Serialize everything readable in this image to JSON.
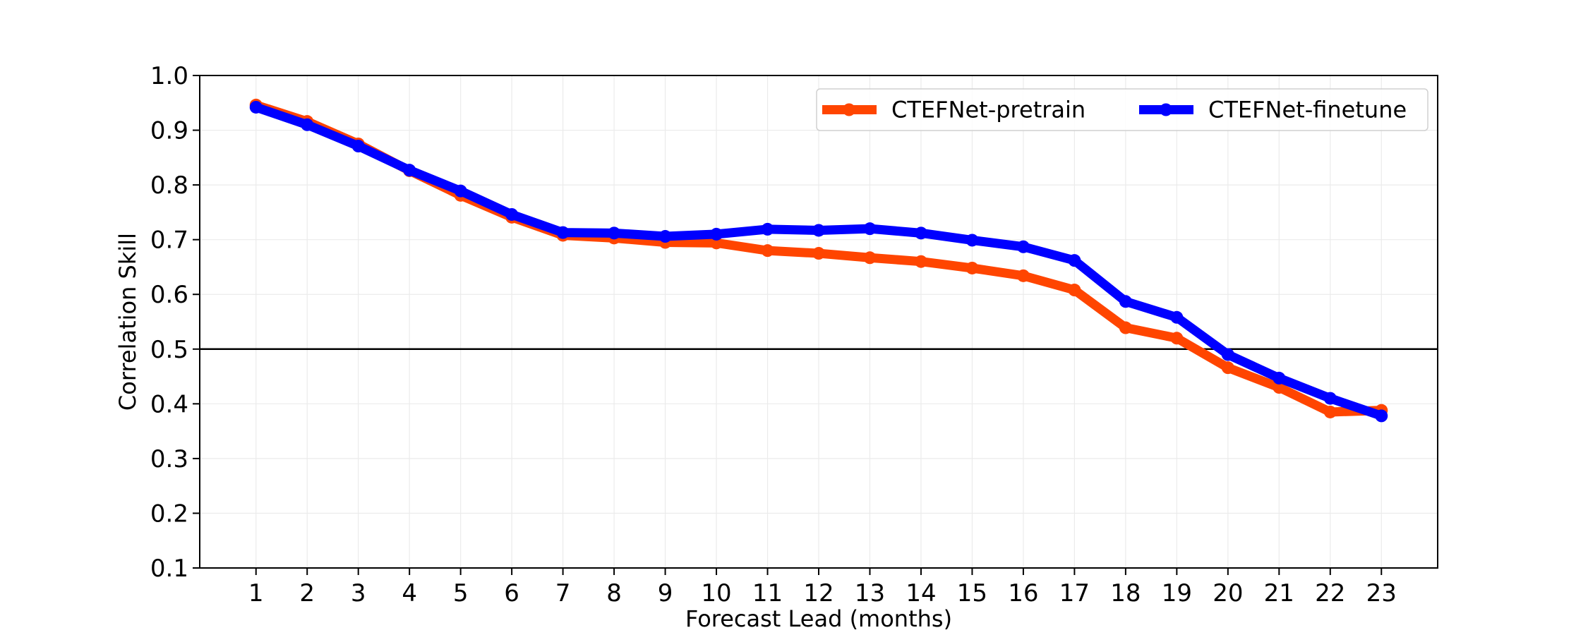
{
  "chart_data": {
    "type": "line",
    "title": "",
    "xlabel": "Forecast Lead (months)",
    "ylabel": "Correlation Skill",
    "categories": [
      1,
      2,
      3,
      4,
      5,
      6,
      7,
      8,
      9,
      10,
      11,
      12,
      13,
      14,
      15,
      16,
      17,
      18,
      19,
      20,
      21,
      22,
      23
    ],
    "x_ticks": [
      "1",
      "2",
      "3",
      "4",
      "5",
      "6",
      "7",
      "8",
      "9",
      "10",
      "11",
      "12",
      "13",
      "14",
      "15",
      "16",
      "17",
      "18",
      "19",
      "20",
      "21",
      "22",
      "23"
    ],
    "y_ticks": [
      "0.1",
      "0.2",
      "0.3",
      "0.4",
      "0.5",
      "0.6",
      "0.7",
      "0.8",
      "0.9",
      "1.0"
    ],
    "ylim": [
      0.1,
      1.0
    ],
    "xlim": [
      -0.1,
      24.1
    ],
    "grid": true,
    "reference_line": {
      "y": 0.5,
      "color": "#000000"
    },
    "legend": {
      "position": "top-right",
      "columns": 2
    },
    "series": [
      {
        "name": "CTEFNet-pretrain",
        "color": "#ff4500",
        "values": [
          0.946,
          0.916,
          0.875,
          0.826,
          0.781,
          0.741,
          0.708,
          0.703,
          0.695,
          0.694,
          0.68,
          0.675,
          0.667,
          0.66,
          0.648,
          0.634,
          0.608,
          0.539,
          0.52,
          0.466,
          0.43,
          0.385,
          0.388
        ]
      },
      {
        "name": "CTEFNet-finetune",
        "color": "#0000ff",
        "values": [
          0.942,
          0.91,
          0.871,
          0.827,
          0.789,
          0.746,
          0.713,
          0.712,
          0.706,
          0.71,
          0.719,
          0.717,
          0.72,
          0.712,
          0.699,
          0.687,
          0.662,
          0.587,
          0.558,
          0.49,
          0.447,
          0.41,
          0.378
        ]
      }
    ]
  }
}
